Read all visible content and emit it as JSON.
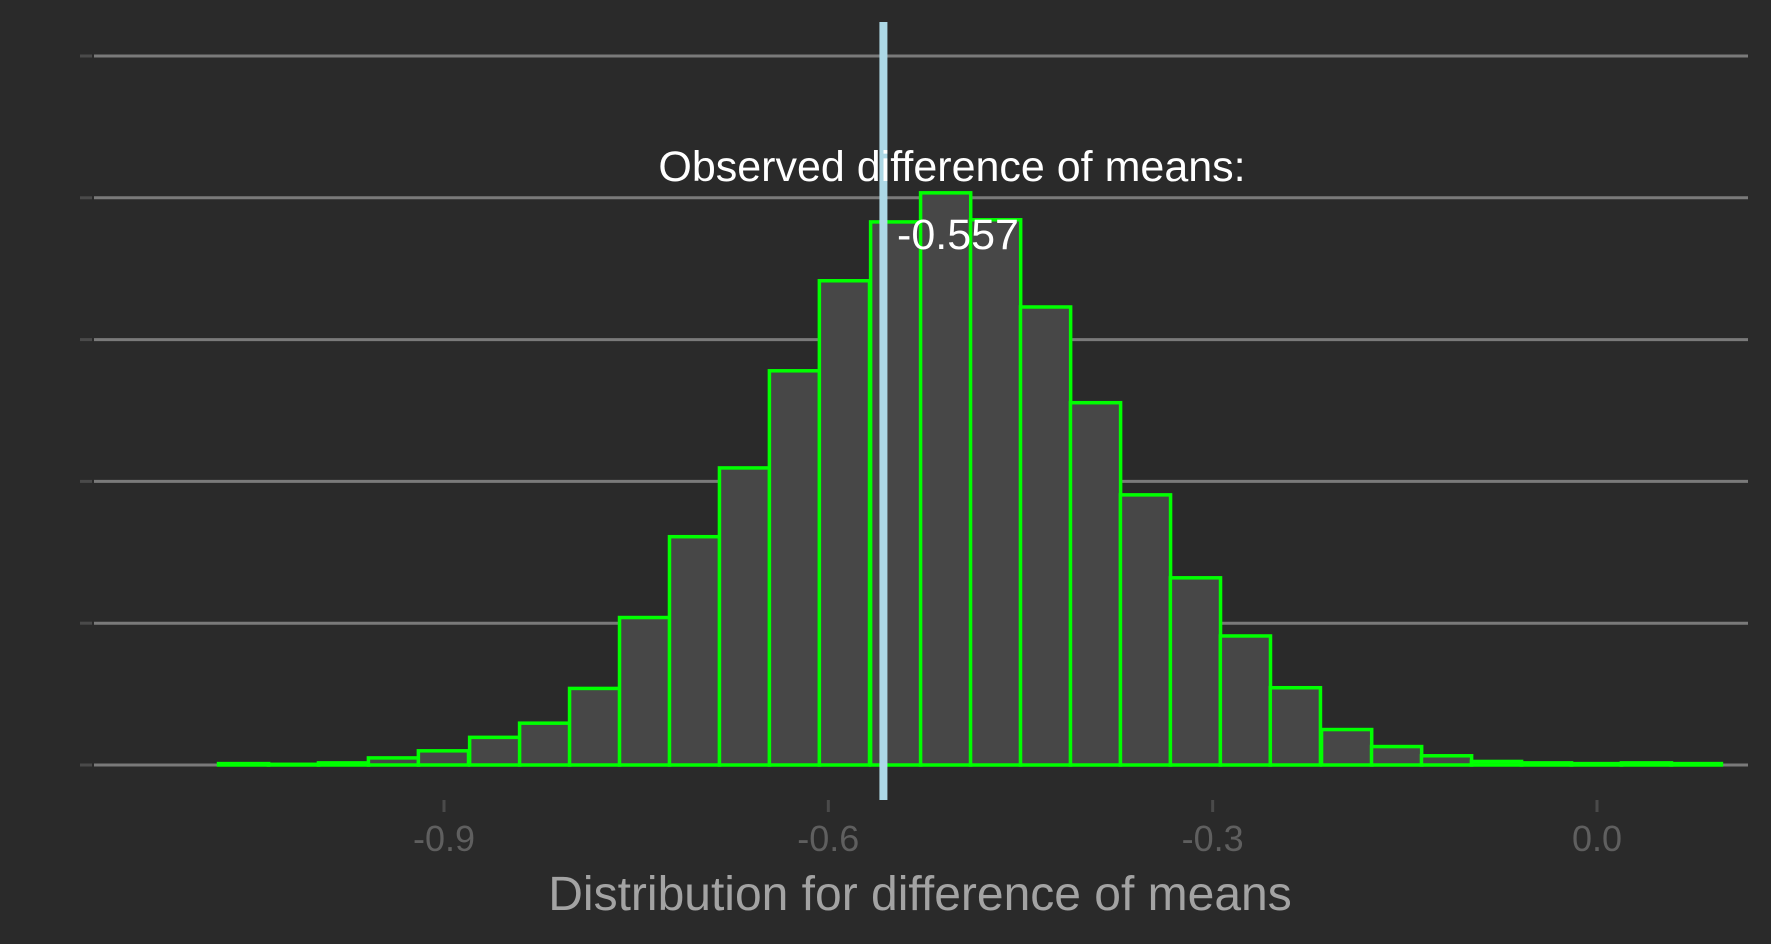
{
  "colors": {
    "background": "#2a2a2a",
    "bar_fill": "#474747",
    "bar_outline": "#00ff00",
    "reference_line": "#add8e6",
    "gridline": "#7a7a7a",
    "annotation_text": "#ffffff",
    "axis_title_text": "#a3a3a3",
    "tick_label_text": "#5f5f5f"
  },
  "chart_data": {
    "type": "bar",
    "subtype": "histogram",
    "xlabel": "Distribution for difference of means",
    "ylabel": "",
    "xlim": [
      -1.1,
      0.12
    ],
    "ylim": [
      0,
      1.0
    ],
    "x_ticks": [
      -0.9,
      -0.6,
      -0.3,
      0.0
    ],
    "x_tick_labels": [
      "-0.9",
      "-0.6",
      "-0.3",
      "0.0"
    ],
    "y_gridlines": [
      0,
      0.2,
      0.4,
      0.6,
      0.8,
      1.0
    ],
    "y_tick_labels_shown": false,
    "grid": true,
    "bin_width": 0.03913,
    "bin_edges": [
      -1.076,
      -1.037,
      -0.998,
      -0.959,
      -0.92,
      -0.88,
      -0.841,
      -0.802,
      -0.763,
      -0.724,
      -0.685,
      -0.646,
      -0.607,
      -0.567,
      -0.528,
      -0.489,
      -0.45,
      -0.411,
      -0.372,
      -0.333,
      -0.294,
      -0.255,
      -0.215,
      -0.176,
      -0.137,
      -0.098,
      -0.059,
      -0.02,
      0.019,
      0.058
    ],
    "values": [
      0.002,
      0.001,
      0.003,
      0.01,
      0.02,
      0.039,
      0.059,
      0.108,
      0.208,
      0.322,
      0.419,
      0.556,
      0.683,
      0.766,
      0.807,
      0.769,
      0.646,
      0.511,
      0.381,
      0.264,
      0.182,
      0.109,
      0.05,
      0.026,
      0.013,
      0.005,
      0.003,
      0.002,
      0.003,
      0.002
    ],
    "reference_line": {
      "x": -0.557,
      "label_line1": "Observed difference of means:",
      "label_line2": "-0.557"
    }
  }
}
